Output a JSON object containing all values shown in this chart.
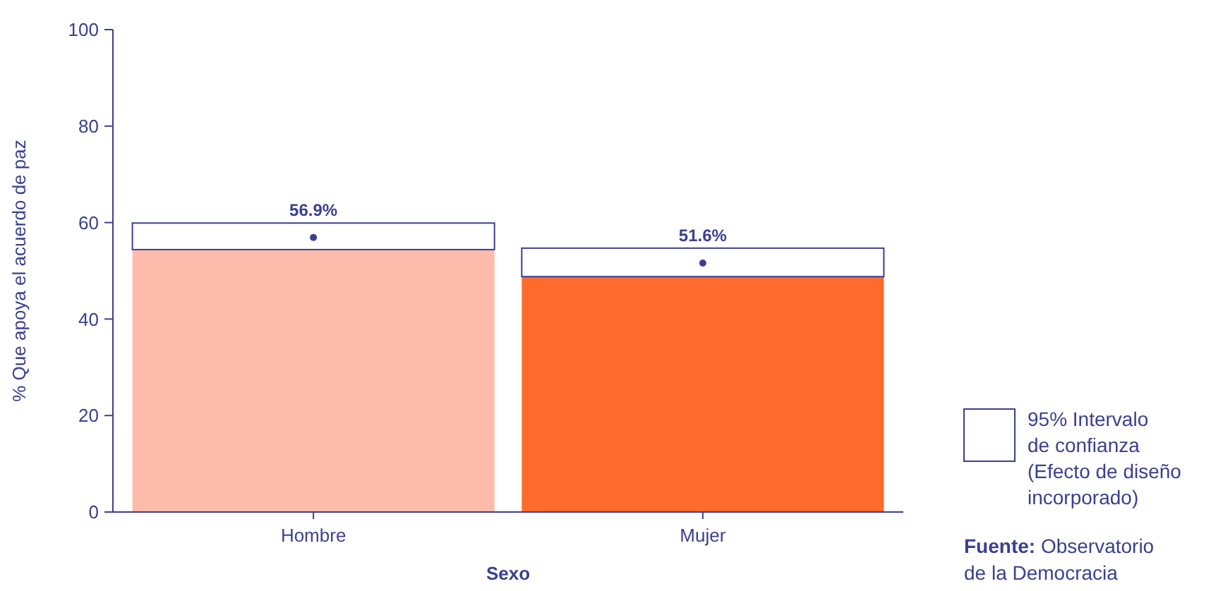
{
  "chart_data": {
    "type": "bar",
    "xlabel": "Sexo",
    "ylabel": "% Que apoya el acuerdo de paz",
    "categories": [
      "Hombre",
      "Mujer"
    ],
    "series": [
      {
        "colors": [
          "#fdbcab",
          "#ff6b2c"
        ],
        "values": [
          54.4,
          48.8
        ]
      },
      {
        "name": "95% Intervalo\nde confianza\n(Efecto de diseño\nincorporado)",
        "color": "#ffffff",
        "values": [
          5.5,
          5.9
        ]
      },
      {
        "type": "scatter",
        "color": "#3b3f8f",
        "marker": "circle",
        "values": [
          56.9,
          51.6
        ],
        "value_labels": [
          "56.9%",
          "51.6%"
        ]
      }
    ],
    "stacked": true,
    "legend": "right",
    "ylim": [
      0,
      100
    ],
    "yticks": [
      0,
      20,
      40,
      60,
      80,
      100
    ],
    "annotations": [
      "Fuente: Observatorio\nde la Democracia"
    ]
  }
}
